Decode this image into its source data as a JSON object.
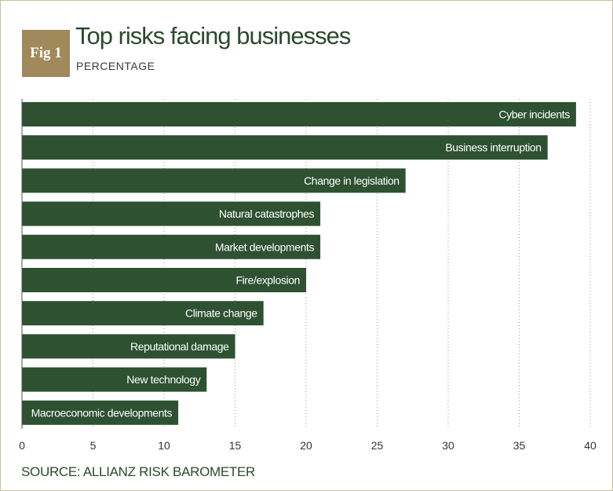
{
  "figure": {
    "badge": "Fig 1",
    "title": "Top risks facing businesses",
    "subtitle": "PERCENTAGE",
    "source": "SOURCE: ALLIANZ RISK BAROMETER"
  },
  "colors": {
    "bar": "#2d5131",
    "badge": "#a0895a",
    "title": "#2b4a2c",
    "grid": "#999999"
  },
  "chart_data": {
    "type": "bar",
    "orientation": "horizontal",
    "title": "Top risks facing businesses",
    "subtitle": "PERCENTAGE",
    "xlabel": "",
    "ylabel": "",
    "xlim": [
      0,
      40
    ],
    "x_ticks": [
      0,
      5,
      10,
      15,
      20,
      25,
      30,
      35,
      40
    ],
    "grid": "vertical dotted",
    "categories": [
      "Cyber incidents",
      "Business interruption",
      "Change in legislation",
      "Natural catastrophes",
      "Market developments",
      "Fire/explosion",
      "Climate change",
      "Reputational damage",
      "New technology",
      "Macroeconomic developments"
    ],
    "values": [
      39,
      37,
      27,
      21,
      21,
      20,
      17,
      15,
      13,
      11
    ]
  }
}
